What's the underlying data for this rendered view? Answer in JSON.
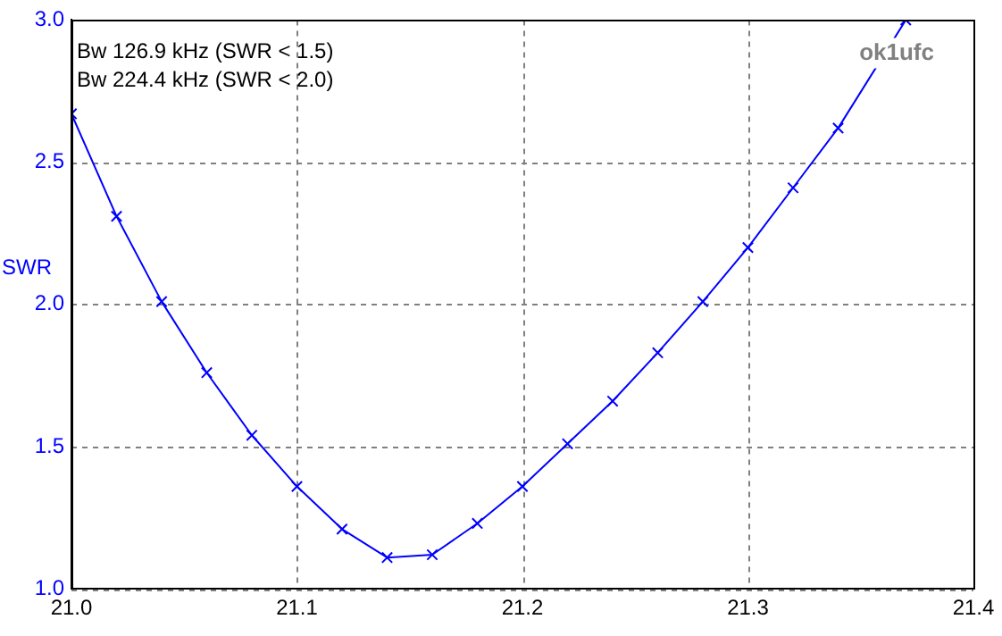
{
  "chart_data": {
    "type": "line",
    "ylabel": "SWR",
    "x": [
      21.0,
      21.02,
      21.04,
      21.06,
      21.08,
      21.1,
      21.12,
      21.14,
      21.16,
      21.18,
      21.2,
      21.22,
      21.24,
      21.26,
      21.28,
      21.3,
      21.32,
      21.34,
      21.37
    ],
    "series": [
      {
        "color": "#0000ff",
        "values": [
          2.67,
          2.31,
          2.01,
          1.76,
          1.54,
          1.36,
          1.21,
          1.11,
          1.12,
          1.23,
          1.36,
          1.51,
          1.66,
          1.83,
          2.01,
          2.2,
          2.41,
          2.62,
          3.0
        ]
      }
    ],
    "xlim": [
      21.0,
      21.4
    ],
    "xticks": [
      {
        "value": 21.0,
        "label": "21.0"
      },
      {
        "value": 21.1,
        "label": "21.1"
      },
      {
        "value": 21.2,
        "label": "21.2"
      },
      {
        "value": 21.3,
        "label": "21.3"
      },
      {
        "value": 21.4,
        "label": "21.4"
      }
    ],
    "ylim": [
      1.0,
      3.0
    ],
    "yticks": [
      {
        "value": 1.0,
        "label": "1.0"
      },
      {
        "value": 1.5,
        "label": "1.5"
      },
      {
        "value": 2.0,
        "label": "2.0"
      },
      {
        "value": 2.5,
        "label": "2.5"
      },
      {
        "value": 3.0,
        "label": "3.0"
      }
    ],
    "grid": true,
    "legend": false,
    "marker": "cross",
    "line_style": "solid",
    "annotations": [
      "Bw 126.9 kHz (SWR < 1.5)",
      "Bw 224.4 kHz (SWR < 2.0)",
      "ok1ufc"
    ]
  }
}
